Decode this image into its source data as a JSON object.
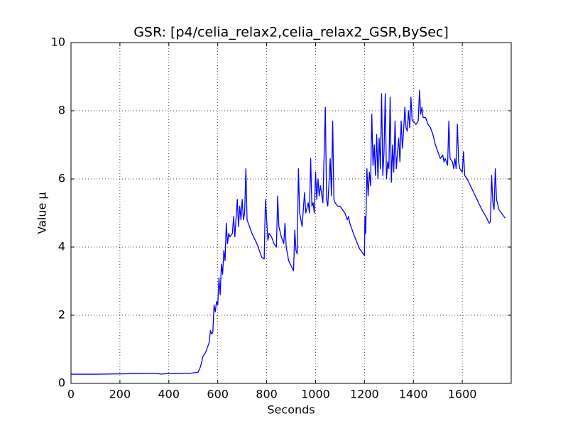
{
  "chart_data": {
    "type": "line",
    "title": "GSR: [p4/celia_relax2,celia_relax2_GSR,BySec]",
    "xlabel": "Seconds",
    "ylabel": "Value µ",
    "color": "#0000ff",
    "grid": true,
    "xlim": [
      0,
      1800
    ],
    "ylim": [
      0,
      10
    ],
    "xticks": [
      0,
      200,
      400,
      600,
      800,
      1000,
      1200,
      1400,
      1600
    ],
    "yticks": [
      0,
      2,
      4,
      6,
      8,
      10
    ],
    "x": [
      0,
      100,
      200,
      300,
      350,
      370,
      380,
      400,
      450,
      470,
      480,
      500,
      520,
      530,
      540,
      550,
      560,
      565,
      570,
      575,
      580,
      585,
      590,
      595,
      600,
      605,
      610,
      615,
      620,
      625,
      630,
      635,
      640,
      645,
      650,
      660,
      665,
      670,
      680,
      685,
      690,
      695,
      700,
      705,
      710,
      715,
      720,
      730,
      740,
      760,
      770,
      780,
      790,
      795,
      800,
      805,
      810,
      820,
      830,
      840,
      845,
      850,
      860,
      870,
      875,
      880,
      890,
      900,
      910,
      915,
      920,
      925,
      930,
      935,
      940,
      945,
      955,
      960,
      970,
      975,
      980,
      985,
      990,
      995,
      1000,
      1005,
      1010,
      1015,
      1020,
      1030,
      1035,
      1040,
      1045,
      1050,
      1055,
      1060,
      1065,
      1070,
      1075,
      1080,
      1090,
      1100,
      1120,
      1130,
      1135,
      1140,
      1160,
      1180,
      1195,
      1200,
      1202,
      1205,
      1210,
      1215,
      1220,
      1225,
      1230,
      1235,
      1240,
      1245,
      1250,
      1255,
      1260,
      1265,
      1270,
      1275,
      1280,
      1285,
      1290,
      1295,
      1300,
      1305,
      1310,
      1315,
      1320,
      1325,
      1330,
      1340,
      1345,
      1350,
      1355,
      1360,
      1365,
      1370,
      1375,
      1380,
      1385,
      1390,
      1395,
      1400,
      1410,
      1420,
      1425,
      1430,
      1435,
      1440,
      1450,
      1460,
      1470,
      1480,
      1490,
      1500,
      1510,
      1520,
      1525,
      1530,
      1540,
      1545,
      1550,
      1560,
      1565,
      1570,
      1575,
      1580,
      1585,
      1590,
      1600,
      1605,
      1610,
      1620,
      1640,
      1660,
      1680,
      1700,
      1710,
      1715,
      1720,
      1725,
      1730,
      1735,
      1740,
      1750,
      1760,
      1770,
      1775
    ],
    "values": [
      0.27,
      0.27,
      0.28,
      0.29,
      0.29,
      0.27,
      0.28,
      0.29,
      0.29,
      0.3,
      0.29,
      0.31,
      0.33,
      0.5,
      0.8,
      0.9,
      1.1,
      1.2,
      1.55,
      1.45,
      1.5,
      2.3,
      2.1,
      2.4,
      2.3,
      3.1,
      2.6,
      3.5,
      3.2,
      3.9,
      3.6,
      4.7,
      4.1,
      4.4,
      4.3,
      4.4,
      4.9,
      4.3,
      5.4,
      4.6,
      5.2,
      4.8,
      5.4,
      4.8,
      5.0,
      6.3,
      4.8,
      4.6,
      4.4,
      4.1,
      3.9,
      3.7,
      3.65,
      5.4,
      4.8,
      4.2,
      4.4,
      4.3,
      4.1,
      4.0,
      5.5,
      4.6,
      4.3,
      4.1,
      4.7,
      4.0,
      3.6,
      3.45,
      3.3,
      4.5,
      3.9,
      3.8,
      6.3,
      5.0,
      4.8,
      4.6,
      5.6,
      5.0,
      5.3,
      5.0,
      6.6,
      5.2,
      5.3,
      5.0,
      6.2,
      5.4,
      6.0,
      5.5,
      5.8,
      5.3,
      6.7,
      8.1,
      5.4,
      5.2,
      5.9,
      6.6,
      5.5,
      7.7,
      5.4,
      5.3,
      5.2,
      5.2,
      5.0,
      4.8,
      4.9,
      4.7,
      4.3,
      3.95,
      3.8,
      3.75,
      4.9,
      4.4,
      6.3,
      5.5,
      6.2,
      5.8,
      7.9,
      6.4,
      7.0,
      6.1,
      7.3,
      6.0,
      7.2,
      6.3,
      8.5,
      6.1,
      6.8,
      8.5,
      6.0,
      6.5,
      6.3,
      8.4,
      5.9,
      7.0,
      6.2,
      7.7,
      6.3,
      7.2,
      6.5,
      7.7,
      6.9,
      7.4,
      8.1,
      7.5,
      7.4,
      8.0,
      7.5,
      8.4,
      7.7,
      7.7,
      7.6,
      7.7,
      8.6,
      7.9,
      8.1,
      7.8,
      7.8,
      7.6,
      7.5,
      7.3,
      7.0,
      6.8,
      6.6,
      6.7,
      6.5,
      6.6,
      6.4,
      7.7,
      6.6,
      6.5,
      6.3,
      6.6,
      6.3,
      7.6,
      6.5,
      6.3,
      6.2,
      6.8,
      6.1,
      6.0,
      5.7,
      5.4,
      5.1,
      4.85,
      4.7,
      4.75,
      6.1,
      5.3,
      5.1,
      6.3,
      5.4,
      5.1,
      5.0,
      4.9,
      4.85
    ]
  }
}
